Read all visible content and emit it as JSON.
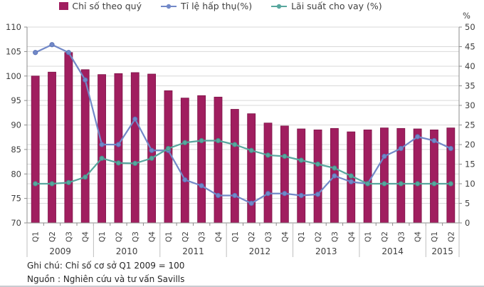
{
  "legend": [
    {
      "label": "Chỉ số theo quý",
      "color": "#a01e5f",
      "marker": "square"
    },
    {
      "label": "Tỉ lệ hấp thụ(%)",
      "color": "#7289c8",
      "marker": "line-dot"
    },
    {
      "label": "Lãi suất cho vay (%)",
      "color": "#58a79e",
      "marker": "line-dot"
    }
  ],
  "footer": {
    "note": "Ghi chú: Chỉ số cơ sở Q1 2009 = 100",
    "source": "Nguồn : Nghiên cứu và tư vấn Savills"
  },
  "chart_data": {
    "type": "bar+line",
    "x_labels": [
      "Q1",
      "Q2",
      "Q3",
      "Q4",
      "Q1",
      "Q2",
      "Q3",
      "Q4",
      "Q1",
      "Q2",
      "Q3",
      "Q4",
      "Q1",
      "Q2",
      "Q3",
      "Q4",
      "Q1",
      "Q2",
      "Q3",
      "Q4",
      "Q1",
      "Q2",
      "Q3",
      "Q4",
      "Q1",
      "Q2"
    ],
    "year_groups": [
      {
        "label": "2009",
        "count": 4
      },
      {
        "label": "2010",
        "count": 4
      },
      {
        "label": "2011",
        "count": 4
      },
      {
        "label": "2012",
        "count": 4
      },
      {
        "label": "2013",
        "count": 4
      },
      {
        "label": "2014",
        "count": 4
      },
      {
        "label": "2015",
        "count": 2
      }
    ],
    "series": [
      {
        "name": "Chỉ số theo quý",
        "type": "bar",
        "axis": "left",
        "color": "#a01e5f",
        "edge_color": "#7d1448",
        "values": [
          100,
          100.8,
          104.8,
          101.3,
          100.3,
          100.5,
          100.7,
          100.4,
          97,
          95.5,
          96,
          95.7,
          93.2,
          92.3,
          90.4,
          89.8,
          89.2,
          89,
          89.3,
          88.6,
          89,
          89.4,
          89.3,
          89.2,
          89,
          89.4
        ]
      },
      {
        "name": "Tỉ lệ hấp thụ(%)",
        "type": "line",
        "axis": "right",
        "color": "#7289c8",
        "edge_color": "#5b73b6",
        "values": [
          43.5,
          45.5,
          43.5,
          36.5,
          20,
          20,
          26.5,
          18.5,
          18.5,
          11,
          9.5,
          7,
          7,
          5,
          7.5,
          7.5,
          7,
          7.3,
          12,
          10.5,
          10,
          17,
          19,
          22,
          21,
          19
        ]
      },
      {
        "name": "Lãi suất cho vay (%)",
        "type": "line",
        "axis": "right",
        "color": "#58a79e",
        "edge_color": "#458f86",
        "values": [
          10,
          10,
          10.3,
          11.7,
          16.5,
          15.3,
          15.2,
          16.5,
          19,
          20.5,
          21,
          21,
          20,
          18.5,
          17.3,
          17,
          16,
          15,
          14,
          12,
          10,
          10,
          10,
          10,
          10,
          10
        ]
      }
    ],
    "left_axis": {
      "min": 70,
      "max": 110,
      "step": 5
    },
    "right_axis": {
      "min": 0,
      "max": 50,
      "step": 5,
      "unit": "%"
    },
    "grid": true,
    "legend_position": "top"
  }
}
